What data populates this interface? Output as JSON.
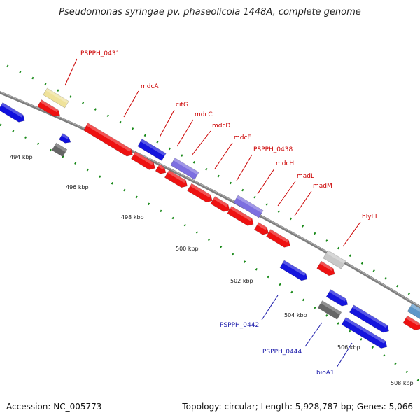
{
  "title": "Pseudomonas syringae pv. phaseolicola 1448A, complete genome",
  "footer": {
    "accession": "Accession: NC_005773",
    "topology": "Topology: circular; Length: 5,928,787 bp; Genes: 5,066"
  },
  "scale": {
    "ticks": [
      "494 kbp",
      "496 kbp",
      "498 kbp",
      "500 kbp",
      "502 kbp",
      "504 kbp",
      "506 kbp",
      "508 kbp"
    ]
  },
  "genes": {
    "forward": [
      "PSPPH_0431",
      "mdcA",
      "citG",
      "mdcC",
      "mdcD",
      "mdcE",
      "PSPPH_0438",
      "mdcH",
      "madL",
      "madM",
      "hlyIII"
    ],
    "reverse": [
      "PSPPH_0442",
      "PSPPH_0444",
      "bioA1"
    ]
  },
  "colors": {
    "forward_label": "#cc0000",
    "reverse_label": "#1a1aaa",
    "backbone": "#8a8a8a",
    "tick": "#1a8a1a"
  }
}
